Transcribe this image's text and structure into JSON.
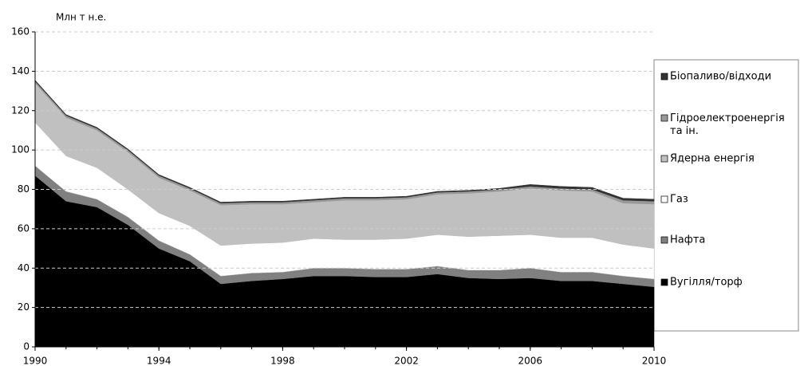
{
  "chart_data": {
    "type": "area",
    "stacked": true,
    "y_axis_label": "Млн т н.е.",
    "x": [
      1990,
      1991,
      1992,
      1993,
      1994,
      1995,
      1996,
      1997,
      1998,
      1999,
      2000,
      2001,
      2002,
      2003,
      2004,
      2005,
      2006,
      2007,
      2008,
      2009,
      2010
    ],
    "xlim": [
      1990,
      2010
    ],
    "xticks": [
      1990,
      1994,
      1998,
      2002,
      2006,
      2010
    ],
    "ylim": [
      0,
      160
    ],
    "yticks": [
      0,
      20,
      40,
      60,
      80,
      100,
      120,
      140,
      160
    ],
    "grid": true,
    "legend": "right",
    "series": [
      {
        "name": "Вугілля/торф",
        "color": "#000000",
        "values": [
          87,
          74,
          71,
          62,
          50,
          43.5,
          32,
          33.5,
          34.5,
          36,
          36,
          35.5,
          35.5,
          37,
          35,
          34.5,
          35,
          33.5,
          33.5,
          32,
          30.5
        ]
      },
      {
        "name": "Нафта",
        "color": "#808080",
        "values": [
          5,
          5,
          4,
          4,
          4,
          3.5,
          4,
          4,
          3.5,
          4,
          4,
          4,
          4,
          4,
          4,
          4.5,
          5,
          4.5,
          4.5,
          4,
          4
        ]
      },
      {
        "name": "Газ",
        "color": "#ffffff",
        "values": [
          22,
          18,
          16,
          14,
          14,
          14.5,
          15.5,
          15,
          15,
          15,
          14.5,
          15,
          15.5,
          16,
          17,
          17.5,
          17,
          17.5,
          17.5,
          16,
          15.5
        ]
      },
      {
        "name": "Ядерна енергія",
        "color": "#c0c0c0",
        "values": [
          20,
          19.5,
          19,
          19,
          18,
          18,
          20.5,
          20,
          19.5,
          18.5,
          20,
          20,
          20,
          20.5,
          22,
          22.5,
          23.5,
          24,
          23.5,
          21,
          22.5
        ]
      },
      {
        "name": "Гідроелектроенергія та ін.",
        "color": "#999999",
        "values": [
          1,
          1,
          1,
          1,
          1,
          1,
          1,
          1,
          1,
          1,
          1,
          1,
          1,
          1,
          1,
          1,
          1,
          1,
          1,
          1.5,
          1.5
        ]
      },
      {
        "name": "Біопаливо/відходи",
        "color": "#333333",
        "values": [
          0.5,
          0.5,
          0.5,
          0.5,
          0.5,
          0.5,
          0.5,
          0.5,
          0.5,
          0.5,
          0.5,
          0.5,
          0.5,
          0.5,
          0.5,
          0.5,
          1,
          1,
          1,
          1,
          1
        ]
      }
    ]
  }
}
